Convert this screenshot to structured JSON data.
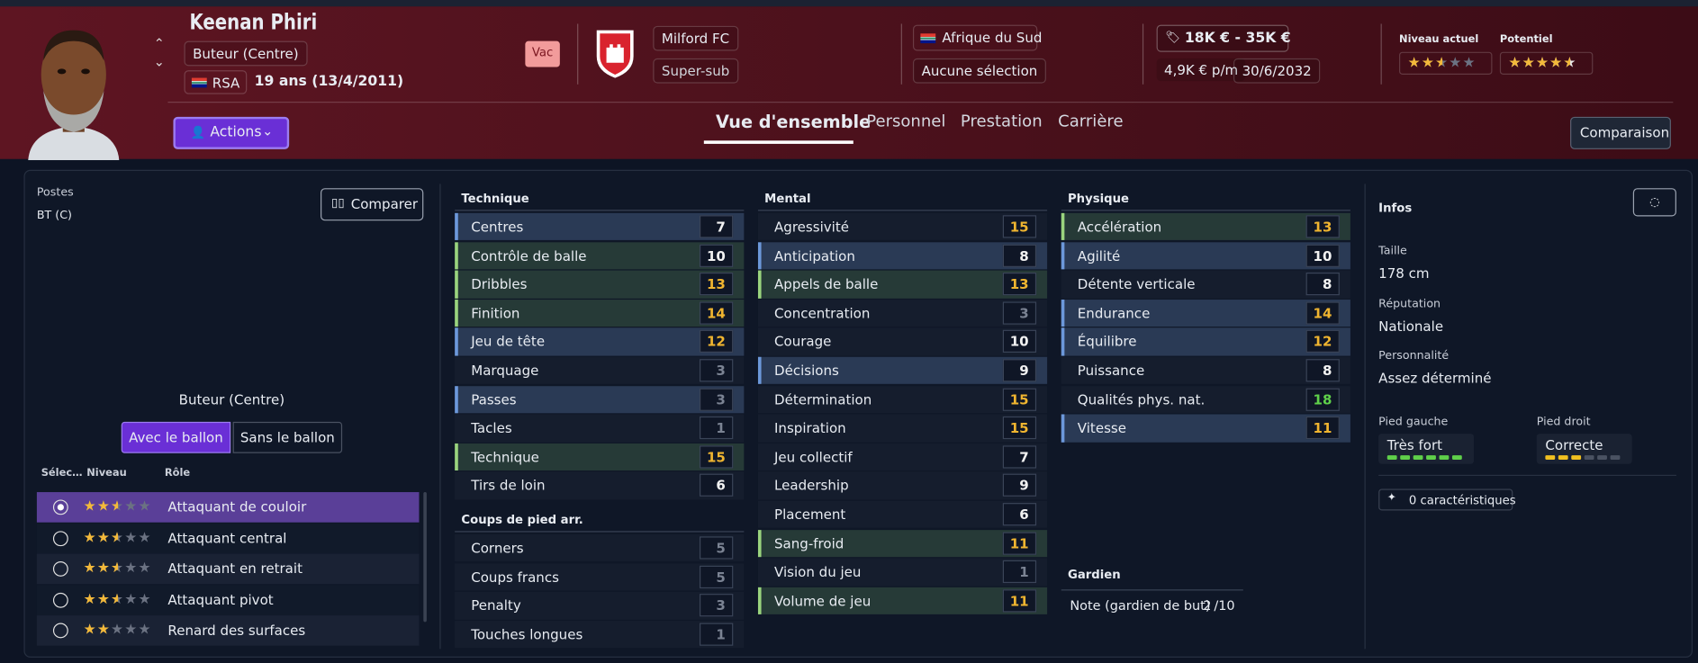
{
  "header": {
    "name": "Keenan Phiri",
    "position": "Buteur (Centre)",
    "nationality_code": "RSA",
    "age": "19 ans (13/4/2011)",
    "status": "Vac",
    "club": "Milford FC",
    "squad_role": "Super-sub",
    "country": "Afrique du Sud",
    "international": "Aucune sélection",
    "value_range": "18K € - 35K €",
    "wage": "4,9K € p/m",
    "contract_end": "30/6/2032",
    "current_ability_label": "Niveau actuel",
    "current_ability": 2.5,
    "potential_label": "Potentiel",
    "potential": 4.5,
    "actions": "Actions",
    "compare": "Comparaison"
  },
  "tabs": [
    "Vue d'ensemble",
    "Personnel",
    "Prestation",
    "Carrière"
  ],
  "positions": {
    "label": "Postes",
    "value": "BT (C)",
    "compare": "Comparer",
    "role_position": "Buteur (Centre)",
    "toggle": [
      "Avec le ballon",
      "Sans le ballon"
    ],
    "columns": [
      "Sélec…",
      "Niveau",
      "Rôle"
    ],
    "roles": [
      {
        "name": "Attaquant de couloir",
        "rating": 2.5
      },
      {
        "name": "Attaquant central",
        "rating": 2.5
      },
      {
        "name": "Attaquant en retrait",
        "rating": 2.5
      },
      {
        "name": "Attaquant pivot",
        "rating": 2.5
      },
      {
        "name": "Renard des surfaces",
        "rating": 2
      }
    ]
  },
  "attributes": {
    "technique": {
      "title": "Technique",
      "rows": [
        {
          "name": "Centres",
          "value": 7,
          "highlight": "blue"
        },
        {
          "name": "Contrôle de balle",
          "value": 10,
          "highlight": "green"
        },
        {
          "name": "Dribbles",
          "value": 13,
          "highlight": "green"
        },
        {
          "name": "Finition",
          "value": 14,
          "highlight": "green"
        },
        {
          "name": "Jeu de tête",
          "value": 12,
          "highlight": "blue"
        },
        {
          "name": "Marquage",
          "value": 3
        },
        {
          "name": "Passes",
          "value": 3,
          "highlight": "blue"
        },
        {
          "name": "Tacles",
          "value": 1
        },
        {
          "name": "Technique",
          "value": 15,
          "highlight": "green"
        },
        {
          "name": "Tirs de loin",
          "value": 6
        }
      ]
    },
    "set_pieces": {
      "title": "Coups de pied arr.",
      "rows": [
        {
          "name": "Corners",
          "value": 5
        },
        {
          "name": "Coups francs",
          "value": 5
        },
        {
          "name": "Penalty",
          "value": 3
        },
        {
          "name": "Touches longues",
          "value": 1
        }
      ]
    },
    "mental": {
      "title": "Mental",
      "rows": [
        {
          "name": "Agressivité",
          "value": 15
        },
        {
          "name": "Anticipation",
          "value": 8,
          "highlight": "blue"
        },
        {
          "name": "Appels de balle",
          "value": 13,
          "highlight": "green"
        },
        {
          "name": "Concentration",
          "value": 3
        },
        {
          "name": "Courage",
          "value": 10
        },
        {
          "name": "Décisions",
          "value": 9,
          "highlight": "blue"
        },
        {
          "name": "Détermination",
          "value": 15
        },
        {
          "name": "Inspiration",
          "value": 15
        },
        {
          "name": "Jeu collectif",
          "value": 7
        },
        {
          "name": "Leadership",
          "value": 9
        },
        {
          "name": "Placement",
          "value": 6
        },
        {
          "name": "Sang-froid",
          "value": 11,
          "highlight": "green"
        },
        {
          "name": "Vision du jeu",
          "value": 1
        },
        {
          "name": "Volume de jeu",
          "value": 11,
          "highlight": "green"
        }
      ]
    },
    "physical": {
      "title": "Physique",
      "rows": [
        {
          "name": "Accélération",
          "value": 13,
          "highlight": "green"
        },
        {
          "name": "Agilité",
          "value": 10,
          "highlight": "blue"
        },
        {
          "name": "Détente verticale",
          "value": 8
        },
        {
          "name": "Endurance",
          "value": 14,
          "highlight": "blue"
        },
        {
          "name": "Équilibre",
          "value": 12,
          "highlight": "blue"
        },
        {
          "name": "Puissance",
          "value": 8
        },
        {
          "name": "Qualités phys. nat.",
          "value": 18
        },
        {
          "name": "Vitesse",
          "value": 11,
          "highlight": "blue"
        }
      ]
    },
    "goalkeeper": {
      "title": "Gardien",
      "label": "Note (gardien de but)",
      "value": 2,
      "scale": "/10"
    }
  },
  "infos": {
    "title": "Infos",
    "fields": [
      {
        "label": "Taille",
        "value": "178 cm"
      },
      {
        "label": "Réputation",
        "value": "Nationale"
      },
      {
        "label": "Personnalité",
        "value": "Assez déterminé"
      }
    ],
    "feet": [
      {
        "label": "Pied gauche",
        "value": "Très fort",
        "level": 6,
        "color": "#5fd04a"
      },
      {
        "label": "Pied droit",
        "value": "Correcte",
        "level": 3,
        "color": "#f0c020"
      }
    ],
    "traits": "0 caractéristiques"
  }
}
